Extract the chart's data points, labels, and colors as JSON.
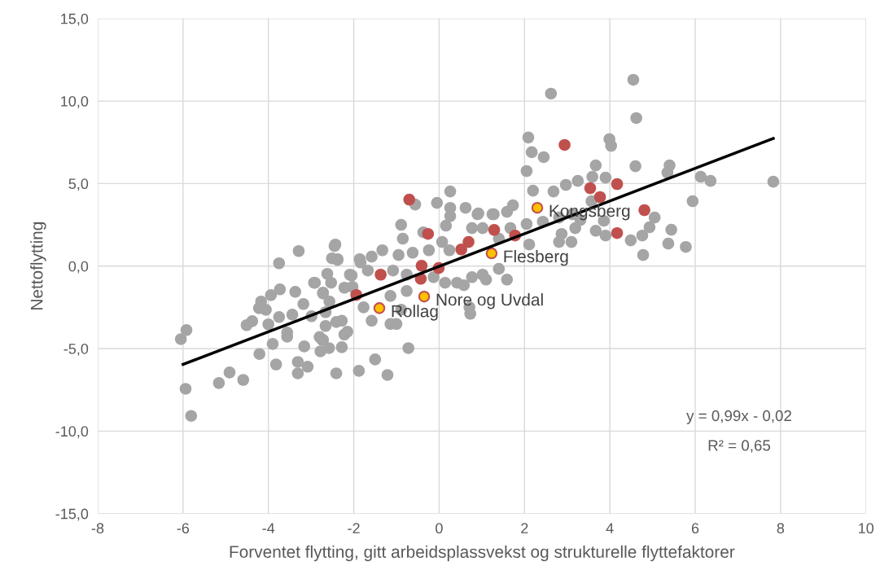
{
  "chart_data": {
    "type": "scatter",
    "xlabel": "Forventet flytting, gitt arbeidsplassvekst og strukturelle flyttefaktorer",
    "ylabel": "Nettoflytting",
    "xlim": [
      -8,
      10
    ],
    "xticks": [
      -8,
      -6,
      -4,
      -2,
      0,
      2,
      4,
      6,
      8,
      10
    ],
    "ylim": [
      -15,
      15
    ],
    "yticks": [
      {
        "value": -15,
        "label": "-15,0"
      },
      {
        "value": -10,
        "label": "-10,0"
      },
      {
        "value": -5,
        "label": "-5,0"
      },
      {
        "value": 0,
        "label": "0,0"
      },
      {
        "value": 5,
        "label": "5,0"
      },
      {
        "value": 10,
        "label": "10,0"
      },
      {
        "value": 15,
        "label": "15,0"
      }
    ],
    "grid": true,
    "legend": false,
    "marker": "circle",
    "series": [
      {
        "color": "#a5a5a5",
        "x": [
          -6.05,
          -5.92,
          -5.94,
          -5.81,
          -5.16,
          -4.91,
          -4.59,
          -4.21,
          -3.82,
          -3.31,
          -3.08,
          -3.31,
          -3.16,
          -3.9,
          -3.56,
          -2.41,
          -1.88,
          -2.28,
          -2.78,
          -2.58,
          -2.74,
          -4.51,
          -4.38,
          -4.22,
          -4.17,
          -4.06,
          -3.94,
          -3.73,
          -3.75,
          -3.44,
          -3.37,
          -3.56,
          -4.0,
          -3.75,
          -3.29,
          -2.45,
          -2.51,
          -2.38,
          -2.93,
          -2.72,
          -2.62,
          -2.53,
          -3.18,
          -2.99,
          -2.66,
          -2.41,
          -2.72,
          -2.15,
          -1.84,
          -2.05,
          -2.03,
          0.26,
          -0.05,
          -0.56,
          -0.89,
          -0.85,
          -0.37,
          0.16,
          0.62,
          0.26,
          0.26,
          0.92,
          1.25,
          0.77,
          0.07,
          -2.43,
          -2.38,
          -1.86,
          -1.58,
          -1.33,
          -0.95,
          -0.62,
          -0.24,
          0.24,
          -2.09,
          -1.67,
          -1.08,
          -0.76,
          -0.13,
          0.42,
          0.77,
          1.02,
          1.4,
          1.59,
          -2.91,
          -2.72,
          -2.57,
          -2.22,
          -1.77,
          -1.14,
          -0.76,
          -0.89,
          0.14,
          0.71,
          0.73,
          -1.58,
          -1.14,
          -2.66,
          -2.28,
          -2.22,
          -2.8,
          -1.0,
          0.58,
          1.1,
          4.55,
          2.62,
          4.62,
          2.09,
          2.17,
          2.45,
          3.99,
          4.03,
          2.05,
          4.6,
          3.67,
          5.4,
          5.35,
          6.13,
          6.36,
          3.9,
          3.59,
          3.25,
          2.97,
          2.68,
          2.2,
          5.94,
          3.57,
          3.86,
          3.67,
          3.9,
          4.49,
          4.76,
          4.93,
          5.05,
          5.44,
          5.37,
          5.78,
          4.78,
          1.73,
          1.59,
          1.28,
          0.9,
          2.05,
          2.43,
          2.81,
          3.12,
          3.31,
          2.87,
          3.19,
          2.81,
          3.1,
          2.11,
          1.67,
          1.4,
          1.02,
          7.83,
          -0.72,
          -1.5,
          -1.21
        ],
        "values": [
          -4.43,
          -3.88,
          -7.44,
          -9.08,
          -7.09,
          -6.45,
          -6.9,
          -5.33,
          -5.96,
          -6.5,
          -6.1,
          -5.81,
          -4.87,
          -4.72,
          -4.28,
          -6.5,
          -6.35,
          -4.92,
          -5.17,
          -4.97,
          -4.47,
          -3.58,
          -3.34,
          -2.55,
          -2.15,
          -2.65,
          -1.76,
          -1.41,
          -3.09,
          -2.94,
          -1.56,
          -4.03,
          -3.53,
          0.17,
          0.91,
          1.21,
          0.47,
          0.37,
          -1.01,
          -1.61,
          -0.47,
          -1.01,
          -2.3,
          -3.04,
          -2.79,
          -3.39,
          -4.47,
          -3.98,
          0.22,
          -0.57,
          -1.26,
          4.52,
          3.83,
          3.73,
          2.5,
          1.66,
          2.05,
          2.45,
          3.53,
          3.53,
          3.03,
          3.19,
          3.14,
          2.3,
          1.46,
          1.31,
          0.42,
          0.42,
          0.57,
          0.96,
          0.67,
          0.81,
          0.96,
          0.96,
          -0.52,
          -0.27,
          -0.27,
          -0.52,
          -0.67,
          -1.01,
          -0.67,
          -0.52,
          -0.17,
          -0.82,
          -1.01,
          -1.66,
          -2.15,
          -1.31,
          -2.5,
          -1.81,
          -1.51,
          -2.65,
          -1.01,
          -2.5,
          -2.89,
          -3.31,
          -3.51,
          -3.63,
          -3.31,
          -4.15,
          -4.3,
          -3.51,
          -1.16,
          -0.82,
          11.29,
          10.45,
          8.97,
          7.79,
          6.9,
          6.6,
          7.69,
          7.29,
          5.76,
          6.05,
          6.1,
          6.1,
          5.66,
          5.41,
          5.16,
          5.36,
          5.41,
          5.16,
          4.92,
          4.52,
          4.57,
          3.93,
          3.93,
          2.74,
          2.14,
          1.85,
          1.56,
          1.85,
          2.35,
          2.94,
          2.2,
          1.36,
          1.16,
          0.67,
          3.68,
          3.29,
          3.14,
          3.14,
          2.55,
          2.69,
          2.94,
          3.14,
          2.79,
          1.95,
          2.3,
          1.46,
          1.46,
          1.31,
          2.3,
          1.66,
          2.3,
          5.11,
          -4.97,
          -5.66,
          -6.6
        ]
      },
      {
        "color": "#c0504d",
        "x": [
          -0.7,
          -0.26,
          -1.37,
          -1.94,
          -0.41,
          -0.43,
          -0.01,
          0.52,
          0.69,
          1.29,
          1.78,
          2.94,
          3.54,
          3.77,
          4.17,
          4.81,
          4.17
        ],
        "values": [
          4.03,
          1.95,
          -0.52,
          -1.75,
          0.02,
          -0.77,
          -0.12,
          1.01,
          1.46,
          2.19,
          1.85,
          7.34,
          4.72,
          4.18,
          4.97,
          3.39,
          2.0
        ]
      },
      {
        "color": "#ffc000",
        "x": [
          2.3,
          1.23,
          -0.35,
          -1.4
        ],
        "values": [
          3.53,
          0.77,
          -1.85,
          -2.55
        ]
      },
      {
        "type": "line",
        "color": "#000000",
        "marker": "none",
        "x": [
          -6,
          7.83
        ],
        "values": [
          -5.96,
          7.73
        ]
      }
    ],
    "annotations": [
      {
        "text": "Kongsberg",
        "x": 2.3,
        "y": 3.53
      },
      {
        "text": "Flesberg",
        "x": 1.23,
        "y": 0.77
      },
      {
        "text": "Nore og Uvdal",
        "x": -0.35,
        "y": -1.85
      },
      {
        "text": "Rollag",
        "x": -1.4,
        "y": -2.55
      },
      "y = 0,99x - 0,02",
      "R² = 0,65"
    ]
  }
}
